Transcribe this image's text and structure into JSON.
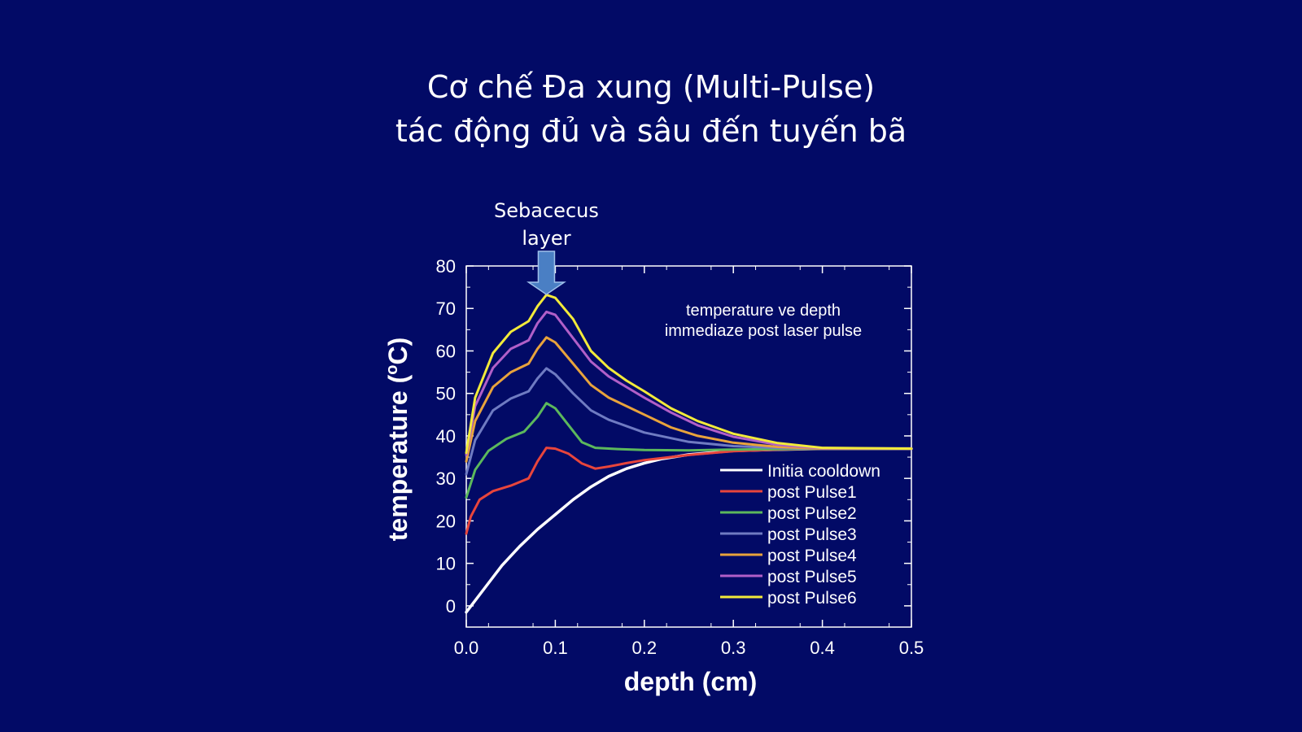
{
  "slide": {
    "title_line1": "Cơ chế Đa xung (Multi-Pulse)",
    "title_line2": "tác động đủ và sâu đến tuyến bã"
  },
  "colors": {
    "background": "#020a66",
    "axis": "#ffffff",
    "arrow": "#4a7fc4"
  },
  "chart_data": {
    "type": "line",
    "xlabel": "depth (cm)",
    "ylabel_prefix": "temperature (",
    "ylabel_sup": "o",
    "ylabel_suffix": "C)",
    "xlim": [
      0,
      0.5
    ],
    "ylim": [
      -5,
      80
    ],
    "x_ticks": [
      "0.0",
      "0.1",
      "0.2",
      "0.3",
      "0.4",
      "0.5"
    ],
    "y_ticks": [
      "0",
      "10",
      "20",
      "30",
      "40",
      "50",
      "60",
      "70",
      "80"
    ],
    "grid": false,
    "legend_position": "bottom-right",
    "annotation_line1": "temperature ve depth",
    "annotation_line2": "immediaze post laser pulse",
    "marker_line1": "Sebacecus",
    "marker_line2": "layer",
    "marker_x": 0.09,
    "series": [
      {
        "name": "Initia cooldown",
        "color": "#ffffff",
        "points": [
          [
            0,
            -1.5
          ],
          [
            0.02,
            4
          ],
          [
            0.04,
            9.5
          ],
          [
            0.06,
            14
          ],
          [
            0.08,
            18
          ],
          [
            0.1,
            21.5
          ],
          [
            0.12,
            25
          ],
          [
            0.14,
            28
          ],
          [
            0.16,
            30.5
          ],
          [
            0.18,
            32.3
          ],
          [
            0.2,
            33.6
          ],
          [
            0.22,
            34.6
          ],
          [
            0.25,
            35.6
          ],
          [
            0.3,
            36.5
          ],
          [
            0.35,
            36.8
          ],
          [
            0.4,
            37
          ],
          [
            0.5,
            37
          ]
        ]
      },
      {
        "name": "post Pulse1",
        "color": "#e8453c",
        "points": [
          [
            0,
            17
          ],
          [
            0.005,
            21
          ],
          [
            0.015,
            25
          ],
          [
            0.03,
            27
          ],
          [
            0.05,
            28.3
          ],
          [
            0.07,
            30
          ],
          [
            0.08,
            34
          ],
          [
            0.09,
            37.2
          ],
          [
            0.1,
            37
          ],
          [
            0.115,
            35.8
          ],
          [
            0.13,
            33.5
          ],
          [
            0.145,
            32.3
          ],
          [
            0.16,
            32.8
          ],
          [
            0.18,
            33.6
          ],
          [
            0.2,
            34.3
          ],
          [
            0.25,
            35.5
          ],
          [
            0.3,
            36.4
          ],
          [
            0.35,
            36.8
          ],
          [
            0.4,
            37
          ],
          [
            0.5,
            37
          ]
        ]
      },
      {
        "name": "post Pulse2",
        "color": "#5cb85c",
        "points": [
          [
            0,
            25.5
          ],
          [
            0.01,
            32
          ],
          [
            0.025,
            36.5
          ],
          [
            0.045,
            39.3
          ],
          [
            0.065,
            41
          ],
          [
            0.08,
            44.5
          ],
          [
            0.09,
            47.7
          ],
          [
            0.1,
            46.5
          ],
          [
            0.115,
            42.5
          ],
          [
            0.13,
            38.5
          ],
          [
            0.145,
            37.2
          ],
          [
            0.17,
            36.9
          ],
          [
            0.2,
            36.7
          ],
          [
            0.25,
            36.6
          ],
          [
            0.3,
            36.8
          ],
          [
            0.4,
            37
          ],
          [
            0.5,
            37
          ]
        ]
      },
      {
        "name": "post Pulse3",
        "color": "#6f7bc2",
        "points": [
          [
            0,
            31
          ],
          [
            0.01,
            39
          ],
          [
            0.03,
            46
          ],
          [
            0.05,
            48.8
          ],
          [
            0.07,
            50.5
          ],
          [
            0.08,
            53.5
          ],
          [
            0.09,
            55.9
          ],
          [
            0.1,
            54.5
          ],
          [
            0.12,
            50
          ],
          [
            0.14,
            46
          ],
          [
            0.16,
            43.8
          ],
          [
            0.18,
            42.3
          ],
          [
            0.2,
            40.8
          ],
          [
            0.25,
            38.6
          ],
          [
            0.3,
            37.6
          ],
          [
            0.35,
            37.2
          ],
          [
            0.4,
            37
          ],
          [
            0.5,
            37
          ]
        ]
      },
      {
        "name": "post Pulse4",
        "color": "#e8a33c",
        "points": [
          [
            0,
            34
          ],
          [
            0.01,
            43.5
          ],
          [
            0.03,
            51.5
          ],
          [
            0.05,
            55
          ],
          [
            0.07,
            57
          ],
          [
            0.08,
            60.5
          ],
          [
            0.09,
            63.2
          ],
          [
            0.1,
            62
          ],
          [
            0.12,
            57
          ],
          [
            0.14,
            52
          ],
          [
            0.16,
            49
          ],
          [
            0.18,
            47
          ],
          [
            0.2,
            45
          ],
          [
            0.23,
            42
          ],
          [
            0.26,
            40
          ],
          [
            0.3,
            38.4
          ],
          [
            0.35,
            37.4
          ],
          [
            0.4,
            37
          ],
          [
            0.5,
            37
          ]
        ]
      },
      {
        "name": "post Pulse5",
        "color": "#b15fc8",
        "points": [
          [
            0,
            35.5
          ],
          [
            0.01,
            47
          ],
          [
            0.03,
            56
          ],
          [
            0.05,
            60.5
          ],
          [
            0.07,
            62.5
          ],
          [
            0.08,
            66.5
          ],
          [
            0.09,
            69.2
          ],
          [
            0.1,
            68.5
          ],
          [
            0.12,
            63
          ],
          [
            0.14,
            57.5
          ],
          [
            0.16,
            54
          ],
          [
            0.18,
            51.5
          ],
          [
            0.2,
            49
          ],
          [
            0.23,
            45.5
          ],
          [
            0.26,
            42.5
          ],
          [
            0.3,
            39.8
          ],
          [
            0.35,
            37.9
          ],
          [
            0.4,
            37.1
          ],
          [
            0.5,
            37
          ]
        ]
      },
      {
        "name": "post Pulse6",
        "color": "#f2ea3a",
        "points": [
          [
            0,
            36
          ],
          [
            0.01,
            49
          ],
          [
            0.03,
            59.5
          ],
          [
            0.05,
            64.5
          ],
          [
            0.07,
            67
          ],
          [
            0.08,
            70.5
          ],
          [
            0.09,
            73.2
          ],
          [
            0.1,
            72.5
          ],
          [
            0.12,
            67.5
          ],
          [
            0.14,
            60
          ],
          [
            0.16,
            56
          ],
          [
            0.18,
            53
          ],
          [
            0.2,
            50.5
          ],
          [
            0.23,
            46.5
          ],
          [
            0.26,
            43.5
          ],
          [
            0.3,
            40.5
          ],
          [
            0.35,
            38.3
          ],
          [
            0.4,
            37.2
          ],
          [
            0.5,
            37
          ]
        ]
      }
    ]
  }
}
